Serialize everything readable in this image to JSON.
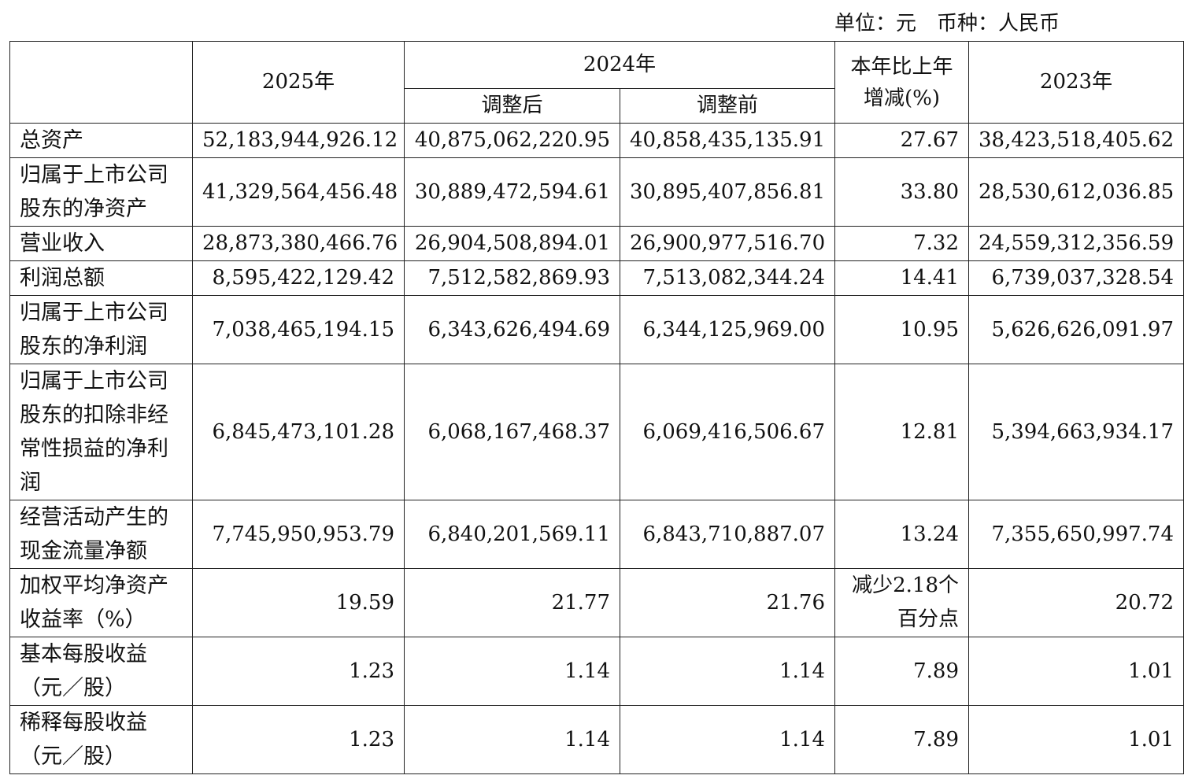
{
  "header": {
    "unit": "单位：元　币种：人民币"
  },
  "table": {
    "columns": {
      "c2025": "2025年",
      "c2024": "2024年",
      "adjusted_after": "调整后",
      "adjusted_before": "调整前",
      "change": "本年比上年增减(%)",
      "c2023": "2023年"
    },
    "rows": [
      [
        "总资产",
        "52,183,944,926.12",
        "40,875,062,220.95",
        "40,858,435,135.91",
        "27.67",
        "38,423,518,405.62"
      ],
      [
        "归属于上市公司股东的净资产",
        "41,329,564,456.48",
        "30,889,472,594.61",
        "30,895,407,856.81",
        "33.80",
        "28,530,612,036.85"
      ],
      [
        "营业收入",
        "28,873,380,466.76",
        "26,904,508,894.01",
        "26,900,977,516.70",
        "7.32",
        "24,559,312,356.59"
      ],
      [
        "利润总额",
        "8,595,422,129.42",
        "7,512,582,869.93",
        "7,513,082,344.24",
        "14.41",
        "6,739,037,328.54"
      ],
      [
        "归属于上市公司股东的净利润",
        "7,038,465,194.15",
        "6,343,626,494.69",
        "6,344,125,969.00",
        "10.95",
        "5,626,626,091.97"
      ],
      [
        "归属于上市公司股东的扣除非经常性损益的净利润",
        "6,845,473,101.28",
        "6,068,167,468.37",
        "6,069,416,506.67",
        "12.81",
        "5,394,663,934.17"
      ],
      [
        "经营活动产生的现金流量净额",
        "7,745,950,953.79",
        "6,840,201,569.11",
        "6,843,710,887.07",
        "13.24",
        "7,355,650,997.74"
      ],
      [
        "加权平均净资产收益率（%）",
        "19.59",
        "21.77",
        "21.76",
        "减少2.18个百分点",
        "20.72"
      ],
      [
        "基本每股收益（元／股）",
        "1.23",
        "1.14",
        "1.14",
        "7.89",
        "1.01"
      ],
      [
        "稀释每股收益（元／股）",
        "1.23",
        "1.14",
        "1.14",
        "7.89",
        "1.01"
      ]
    ]
  }
}
